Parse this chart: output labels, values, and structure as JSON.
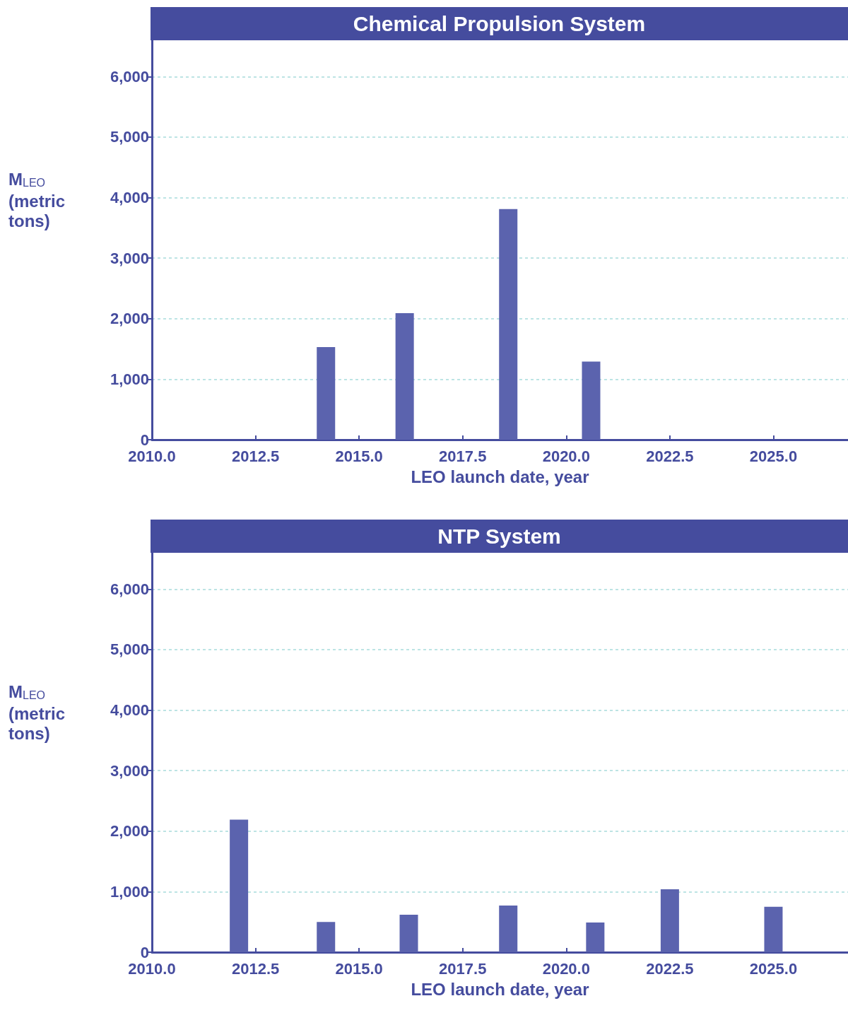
{
  "chart_data": [
    {
      "type": "bar",
      "title": "Chemical Propulsion System",
      "xlabel": "LEO launch date, year",
      "ylabel": "M$_{LEO}$ (metric tons)",
      "x": [
        2014.2,
        2016.1,
        2018.6,
        2020.6
      ],
      "values": [
        1530,
        2090,
        3810,
        1290
      ],
      "color": "#5b63ae",
      "xlim": [
        2010,
        2026.8
      ],
      "xticks": [
        {
          "value": 2010,
          "label": "2010.0"
        },
        2012.5,
        {
          "value": 2015,
          "label": "2015.0"
        },
        2017.5,
        {
          "value": 2020,
          "label": "2020.0"
        },
        2022.5,
        {
          "value": 2025,
          "label": "2025.0"
        }
      ],
      "ylim": [
        0,
        6600
      ],
      "yticks": [
        0,
        {
          "value": 1000,
          "label": "1,000"
        },
        {
          "value": 2000,
          "label": "2,000"
        },
        {
          "value": 3000,
          "label": "3,000"
        },
        {
          "value": 4000,
          "label": "4,000"
        },
        {
          "value": 5000,
          "label": "5,000"
        },
        {
          "value": 6000,
          "label": "6,000"
        }
      ],
      "grid": "y"
    },
    {
      "type": "bar",
      "title": "NTP System",
      "xlabel": "LEO launch date, year",
      "ylabel": "M$_{LEO}$ (metric tons)",
      "x": [
        2012.1,
        2014.2,
        2016.2,
        2018.6,
        2020.7,
        2022.5,
        2025.0
      ],
      "values": [
        2190,
        500,
        620,
        770,
        490,
        1040,
        750
      ],
      "color": "#5b63ae",
      "xlim": [
        2010,
        2026.8
      ],
      "xticks": [
        {
          "value": 2010,
          "label": "2010.0"
        },
        2012.5,
        {
          "value": 2015,
          "label": "2015.0"
        },
        2017.5,
        {
          "value": 2020,
          "label": "2020.0"
        },
        2022.5,
        {
          "value": 2025,
          "label": "2025.0"
        }
      ],
      "ylim": [
        0,
        6600
      ],
      "yticks": [
        0,
        {
          "value": 1000,
          "label": "1,000"
        },
        {
          "value": 2000,
          "label": "2,000"
        },
        {
          "value": 3000,
          "label": "3,000"
        },
        {
          "value": 4000,
          "label": "4,000"
        },
        {
          "value": 5000,
          "label": "5,000"
        },
        {
          "value": 6000,
          "label": "6,000"
        }
      ],
      "grid": "y"
    }
  ]
}
